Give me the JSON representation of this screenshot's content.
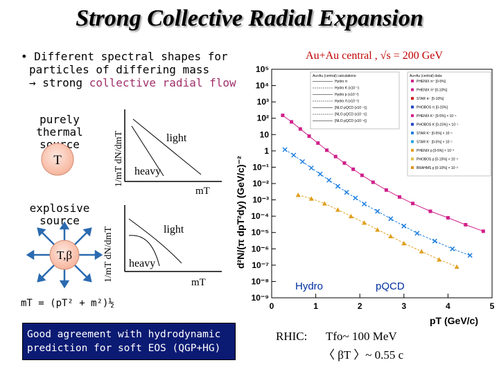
{
  "slide": {
    "title": "Strong Collective Radial Expansion",
    "bullet_line1": "• Different spectral shapes for",
    "bullet_line2": "particles of differing mass",
    "bullet_line3_prefix": "→ strong ",
    "bullet_line3_accent": "collective radial flow",
    "thermal_label_line1": "purely thermal",
    "thermal_label_line2": "source",
    "thermal_symbol": "T",
    "explosive_label_line1": "explosive",
    "explosive_label_line2": "source",
    "explosive_symbol": "T,β",
    "sketch_ylabel": "1/mT dN/dmT",
    "sketch_xlabel": "mT",
    "light_label": "light",
    "heavy_label": "heavy",
    "mt_formula": "mT = (pT² + m²)½",
    "agreement_line1": "Good agreement with hydrodynamic",
    "agreement_line2": "prediction for soft EOS (QGP+HG)",
    "rhic_label": "RHIC:",
    "rhic_tfo": "Tfo~ 100 MeV",
    "rhic_beta": "〈 βT 〉~ 0.55 c",
    "colors": {
      "box_bg": "#0b1a73",
      "accent": "#a0306a"
    }
  },
  "chart_data": {
    "type": "scatter",
    "title": "Au+Au central , √s = 200 GeV",
    "xlabel": "pT (GeV/c)",
    "ylabel": "d²N/(π dpT²dy) (GeV/c)⁻²",
    "xlim": [
      0,
      5
    ],
    "ylim": [
      1e-09,
      100000.0
    ],
    "log_y": true,
    "x_ticks": [
      "0",
      "1",
      "2",
      "3",
      "4",
      "5"
    ],
    "y_ticks": [
      "10⁵",
      "10⁴",
      "10³",
      "10²",
      "10",
      "1",
      "10⁻¹",
      "10⁻²",
      "10⁻³",
      "10⁻⁴",
      "10⁻⁵",
      "10⁻⁶",
      "10⁻⁷",
      "10⁻⁸",
      "10⁻⁹"
    ],
    "region_labels": [
      "Hydro",
      "pQCD"
    ],
    "legend_left_title": "Au+Au (central) calculations:",
    "legend_left": [
      "Hydro π",
      "Hydro K (x10⁻¹)",
      "Hydro p (x10⁻²)",
      "Hydro Λ (x10⁻³)",
      "[NLO pQCD (x10⁻⁴)]",
      "[NLO pQCD (x10⁻⁵)]",
      "[NLO pQCD (x10⁻⁶)]"
    ],
    "legend_right_title": "Au+Au (central) data:",
    "legend_right": [
      "PHENIX π⁺ [0-5%]",
      "PHENIX π⁰ [0-10%]",
      "STAR π⁻ [5-10%]",
      "PHOBOS π [0-15%]",
      "PHENIX K⁺ [0-5%] × 10⁻¹",
      "PHOBOS K [0-15%] × 10⁻¹",
      "STAR K⁺ [0-5%] × 10⁻¹",
      "STAR K⁻ [0-5%] × 10⁻¹",
      "PHENIX p [0-5%] × 10⁻²",
      "PHOBOS p [0-15%] × 10⁻²",
      "BRAHMS p [0-10%] × 10⁻²"
    ],
    "series": [
      {
        "name": "PHENIX π⁺ [0-5%]",
        "color": "#d0208a",
        "x": [
          0.25,
          0.45,
          0.65,
          0.85,
          1.05,
          1.25,
          1.45,
          1.65,
          1.85,
          2.05,
          2.3,
          2.6,
          2.9,
          3.2,
          3.6,
          4.0,
          4.4,
          4.8
        ],
        "y": [
          150,
          60,
          22,
          8,
          3,
          1.1,
          0.45,
          0.18,
          0.075,
          0.032,
          0.012,
          0.004,
          0.0015,
          0.0006,
          0.0002,
          8e-05,
          3e-05,
          1.2e-05
        ]
      },
      {
        "name": "STAR K⁺ [0-5%] × 10⁻¹",
        "color": "#2080e0",
        "x": [
          0.3,
          0.5,
          0.7,
          0.9,
          1.1,
          1.3,
          1.5,
          1.7,
          1.9,
          2.1,
          2.4,
          2.7,
          3.0,
          3.3,
          3.7,
          4.1,
          4.5
        ],
        "y": [
          1.2,
          0.55,
          0.22,
          0.09,
          0.038,
          0.016,
          0.0068,
          0.0029,
          0.0013,
          0.00056,
          0.0002,
          7e-05,
          2.5e-05,
          9e-06,
          3e-06,
          1e-06,
          4e-07
        ]
      },
      {
        "name": "PHENIX p [0-5%] × 10⁻²",
        "color": "#e0a020",
        "x": [
          0.6,
          0.9,
          1.2,
          1.5,
          1.8,
          2.1,
          2.4,
          2.7,
          3.0,
          3.4,
          3.8,
          4.2
        ],
        "y": [
          0.002,
          0.0012,
          0.0006,
          0.00025,
          0.0001,
          4e-05,
          1.5e-05,
          6e-06,
          2.2e-06,
          7e-07,
          2.2e-07,
          8e-08
        ]
      }
    ]
  }
}
